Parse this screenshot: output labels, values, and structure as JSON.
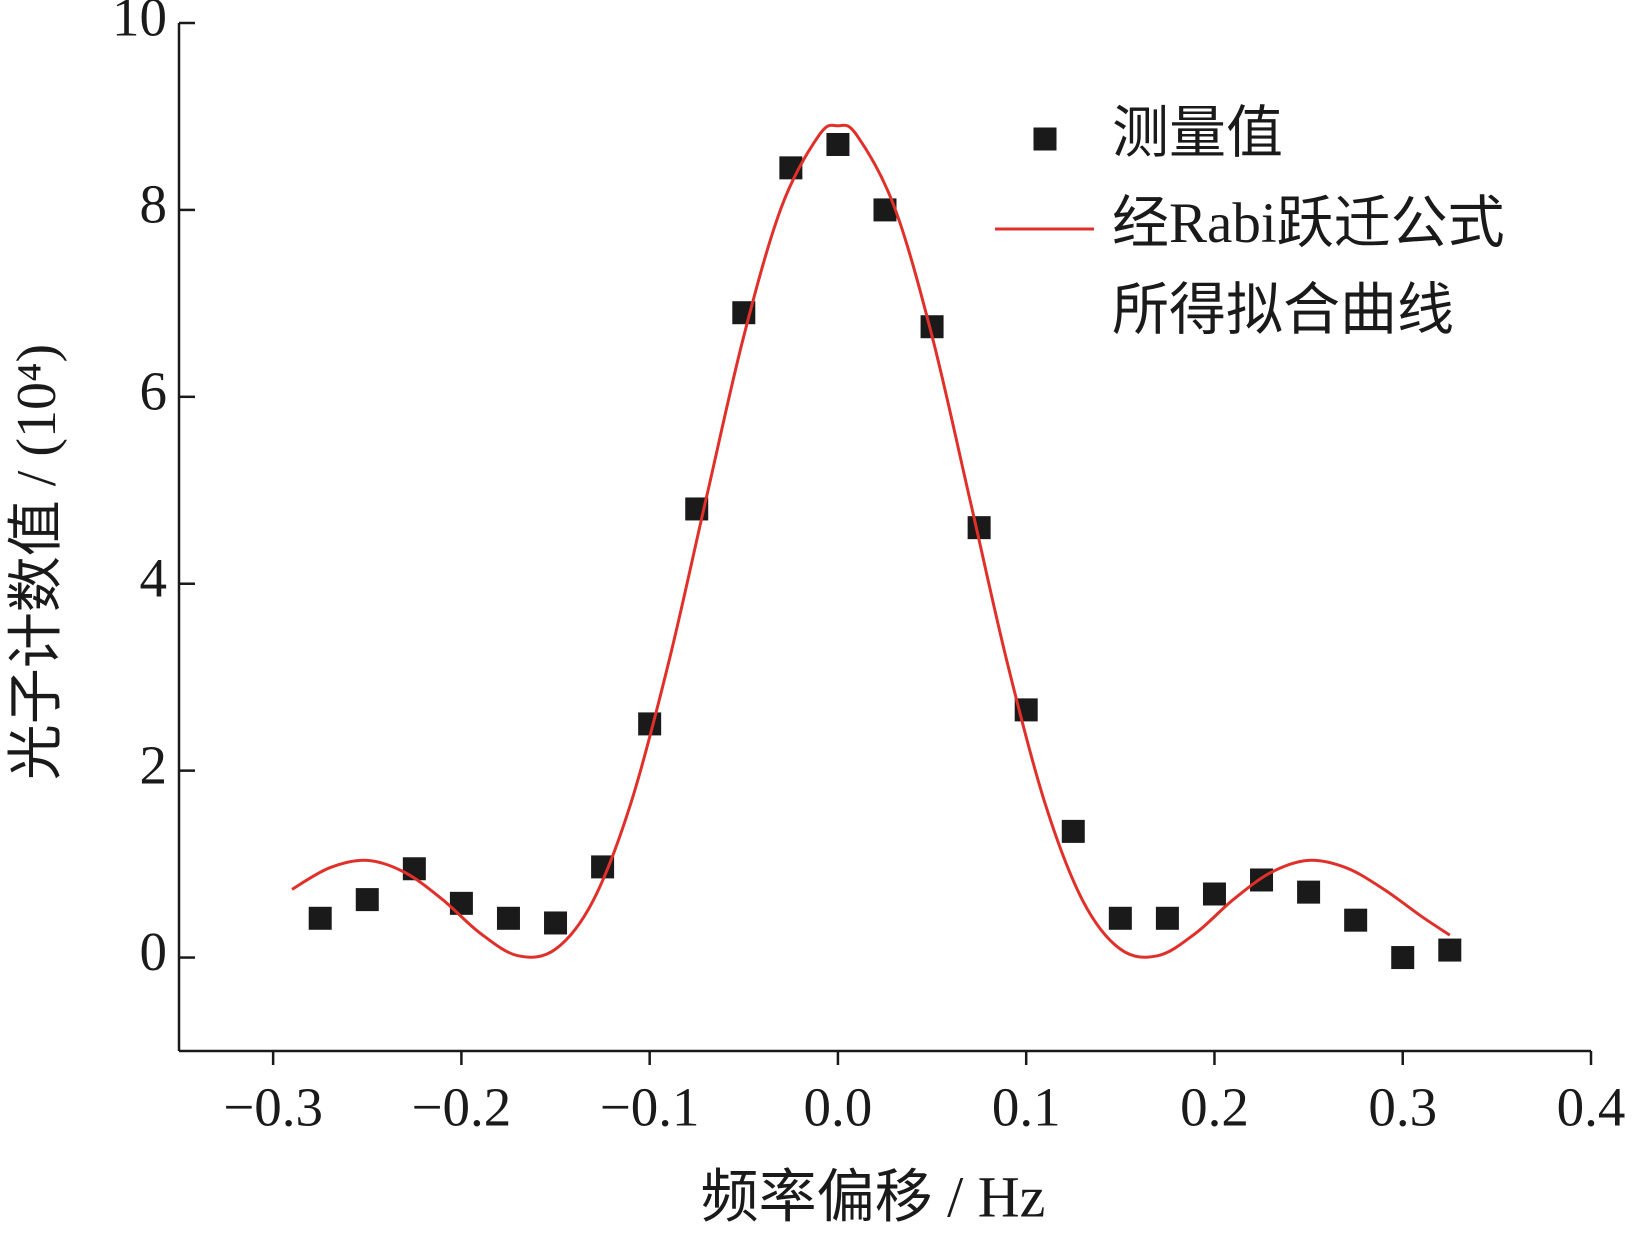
{
  "chart_data": {
    "type": "scatter",
    "xlabel": "频率偏移 / Hz",
    "ylabel": "光子计数值 / (10⁴)",
    "xlim": [
      -0.35,
      0.4
    ],
    "ylim": [
      -1,
      10
    ],
    "xticks": [
      {
        "value": -0.3,
        "label": "−0.3"
      },
      {
        "value": -0.2,
        "label": "−0.2"
      },
      {
        "value": -0.1,
        "label": "−0.1"
      },
      {
        "value": 0,
        "label": "0.0"
      },
      0.1,
      0.2,
      0.3,
      0.4
    ],
    "yticks": [
      0,
      2,
      4,
      6,
      8,
      10
    ],
    "series": [
      {
        "name": "测量值",
        "type": "scatter",
        "color": "#1a1a1a",
        "x": [
          -0.275,
          -0.25,
          -0.225,
          -0.2,
          -0.175,
          -0.15,
          -0.125,
          -0.1,
          -0.075,
          -0.05,
          -0.025,
          0,
          0.025,
          0.05,
          0.075,
          0.1,
          0.125,
          0.15,
          0.175,
          0.2,
          0.225,
          0.25,
          0.275,
          0.3,
          0.325
        ],
        "values": [
          0.42,
          0.62,
          0.95,
          0.58,
          0.42,
          0.37,
          0.97,
          2.5,
          4.8,
          6.9,
          8.45,
          8.7,
          8.0,
          6.75,
          4.6,
          2.65,
          1.35,
          0.42,
          0.42,
          0.68,
          0.83,
          0.7,
          0.4,
          0.0,
          0.08
        ]
      },
      {
        "name": "经Rabi跃迁公式\n所得拟合曲线",
        "type": "line",
        "color": "#e0302a",
        "x": [
          -0.29,
          -0.27,
          -0.25,
          -0.23,
          -0.21,
          -0.19,
          -0.17,
          -0.15,
          -0.13,
          -0.11,
          -0.09,
          -0.07,
          -0.05,
          -0.03,
          -0.01,
          0,
          0.01,
          0.03,
          0.05,
          0.07,
          0.09,
          0.11,
          0.13,
          0.15,
          0.17,
          0.19,
          0.21,
          0.23,
          0.25,
          0.27,
          0.29,
          0.31,
          0.325
        ],
        "values": [
          0.73,
          0.96,
          1.04,
          0.91,
          0.62,
          0.26,
          0.02,
          0.09,
          0.61,
          1.65,
          3.15,
          4.91,
          6.65,
          8.03,
          8.8,
          8.9,
          8.8,
          8.03,
          6.65,
          4.91,
          3.15,
          1.65,
          0.61,
          0.09,
          0.02,
          0.26,
          0.62,
          0.91,
          1.04,
          0.96,
          0.73,
          0.44,
          0.24
        ]
      }
    ]
  }
}
